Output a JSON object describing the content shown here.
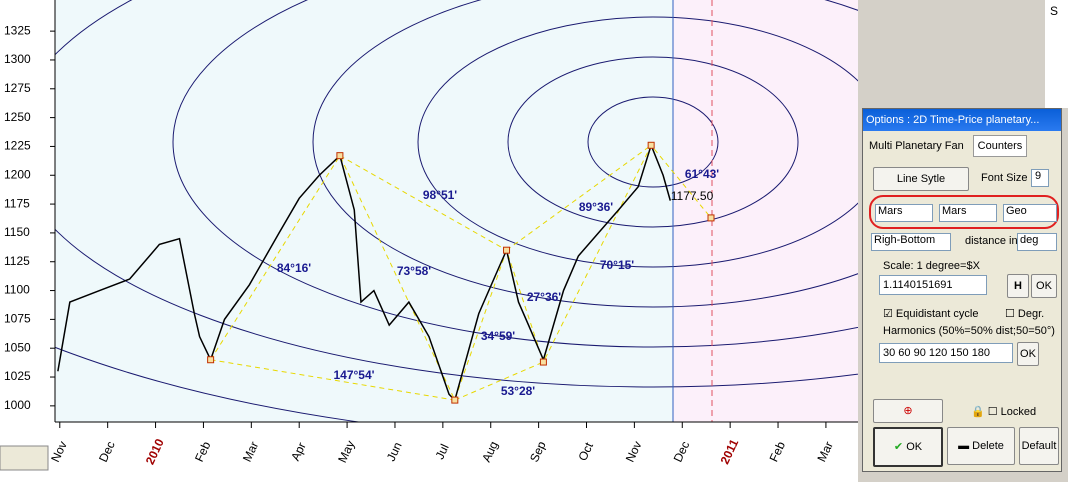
{
  "chart_data": {
    "type": "line",
    "ylim": [
      986,
      1352
    ],
    "yticks": [
      1000,
      1025,
      1050,
      1075,
      1100,
      1125,
      1150,
      1175,
      1200,
      1225,
      1250,
      1275,
      1300,
      1325
    ],
    "xlim": [
      -0.1,
      16.67
    ],
    "xticks": [
      {
        "value": 0,
        "label": "Nov"
      },
      {
        "value": 1,
        "label": "Dec"
      },
      {
        "value": 2,
        "label": "2010"
      },
      {
        "value": 3,
        "label": "Feb"
      },
      {
        "value": 4,
        "label": "Mar"
      },
      {
        "value": 5,
        "label": "Apr"
      },
      {
        "value": 6,
        "label": "May"
      },
      {
        "value": 7,
        "label": "Jun"
      },
      {
        "value": 8,
        "label": "Jul"
      },
      {
        "value": 9,
        "label": "Aug"
      },
      {
        "value": 10,
        "label": "Sep"
      },
      {
        "value": 11,
        "label": "Oct"
      },
      {
        "value": 12,
        "label": "Nov"
      },
      {
        "value": 13,
        "label": "Dec"
      },
      {
        "value": 14,
        "label": "2011"
      },
      {
        "value": 15,
        "label": "Feb"
      },
      {
        "value": 16,
        "label": "Mar"
      }
    ],
    "price": {
      "color": "#000000",
      "x": [
        -0.04,
        0.21,
        0.83,
        1.46,
        2.08,
        2.5,
        2.81,
        2.92,
        3.15,
        3.44,
        3.96,
        4.58,
        5,
        5.42,
        5.85,
        6.15,
        6.29,
        6.56,
        6.88,
        7.29,
        7.71,
        8.13,
        8.25,
        8.75,
        9.17,
        9.33,
        9.58,
        9.79,
        10.1,
        10.52,
        10.83,
        11.25,
        11.67,
        12.08,
        12.35,
        12.6,
        12.75
      ],
      "values": [
        1030,
        1090,
        1100,
        1110,
        1140,
        1145,
        1080,
        1060,
        1040,
        1075,
        1105,
        1150,
        1180,
        1200,
        1217,
        1170,
        1090,
        1100,
        1070,
        1090,
        1060,
        1010,
        1005,
        1080,
        1120,
        1135,
        1090,
        1070,
        1040,
        1100,
        1130,
        1150,
        1170,
        1190,
        1226,
        1200,
        1178
      ]
    },
    "pattern": {
      "color": "#e8d800",
      "x": [
        3.15,
        5.85,
        8.25,
        9.33,
        10.1,
        12.35,
        13.6
      ],
      "values": [
        1040,
        1217,
        1005,
        1135,
        1038,
        1226,
        1163
      ]
    },
    "annotations": [
      "98°51'",
      "84°16'",
      "73°58'",
      "147°54'",
      "34°59'",
      "27°36'",
      "53°28'",
      "89°36'",
      "70°15'",
      "61°43'",
      "1177.50"
    ]
  },
  "dialog": {
    "title": "Options : 2D Time-Price planetary...",
    "tabs": [
      "Multi Planetary Fan",
      "Counters"
    ],
    "line_style": "Line Sytle",
    "font_size_label": "Font Size",
    "font_size": "9",
    "selects": [
      "Mars",
      "Mars",
      "Geo"
    ],
    "corner": "Righ-Bottom",
    "distance_label": "distance in",
    "distance_unit": "deg",
    "scale_label": "Scale: 1 degree=$X",
    "scale_value": "1.1140151691",
    "h": "H",
    "ok_small": "OK",
    "equidistant": "Equidistant cycle",
    "degr": "Degr.",
    "harmonics_label": "Harmonics (50%=50% dist;50=50°)",
    "harmonics_value": "30 60 90 120 150 180",
    "ok_harm": "OK",
    "locked": "Locked",
    "ok": "OK",
    "delete": "Delete",
    "default": "Default"
  },
  "side": "S"
}
